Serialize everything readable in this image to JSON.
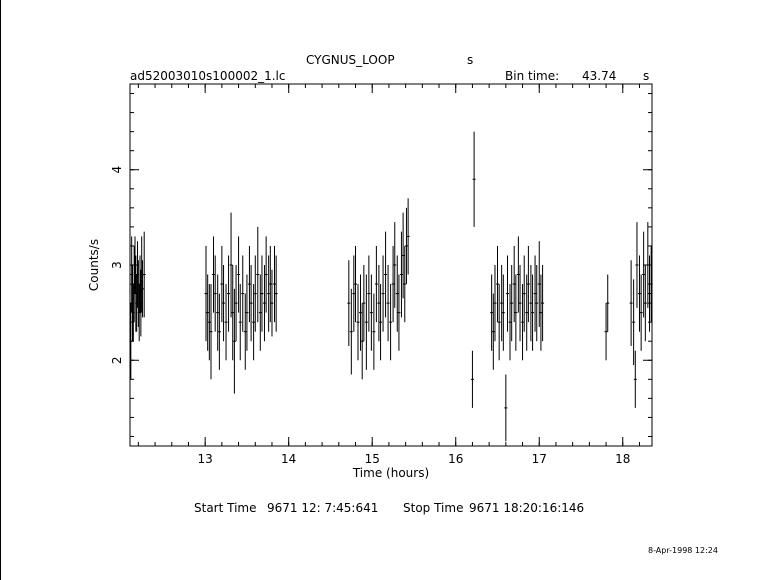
{
  "header": {
    "object": "CYGNUS_LOOP",
    "object_suffix": "s",
    "filename": "ad52003010s100002_1.lc",
    "bin_label": "Bin time:",
    "bin_value": "43.74",
    "bin_unit": "s"
  },
  "footer": {
    "start_label": "Start Time",
    "start_value": "9671 12: 7:45:641",
    "stop_label": "Stop Time",
    "stop_value": "9671 18:20:16:146",
    "date_stamp": "8-Apr-1998 12:24"
  },
  "chart_data": {
    "type": "scatter",
    "xlabel": "Time (hours)",
    "ylabel": "Counts/s",
    "xlim": [
      12.1,
      18.35
    ],
    "ylim": [
      1.1,
      4.9
    ],
    "xticks": [
      13,
      14,
      15,
      16,
      17,
      18
    ],
    "xtick_labels": [
      "13",
      "14",
      "15",
      "16",
      "17",
      "18"
    ],
    "yticks": [
      2,
      3,
      4
    ],
    "ytick_labels": [
      "2",
      "3",
      "4"
    ],
    "grid": false,
    "legend": "none",
    "series": [
      {
        "points": [
          [
            12.11,
            2.2,
            0.4
          ],
          [
            12.12,
            2.9,
            0.4
          ],
          [
            12.13,
            2.6,
            0.4
          ],
          [
            12.14,
            2.5,
            0.3
          ],
          [
            12.15,
            2.8,
            0.4
          ],
          [
            12.16,
            3.0,
            0.3
          ],
          [
            12.17,
            2.7,
            0.4
          ],
          [
            12.18,
            2.6,
            0.3
          ],
          [
            12.19,
            2.9,
            0.35
          ],
          [
            12.2,
            2.7,
            0.35
          ],
          [
            12.21,
            2.5,
            0.3
          ],
          [
            12.22,
            2.8,
            0.3
          ],
          [
            12.23,
            2.6,
            0.35
          ],
          [
            12.24,
            2.9,
            0.4
          ],
          [
            12.25,
            2.75,
            0.3
          ],
          [
            12.27,
            2.9,
            0.45
          ],
          [
            13.01,
            2.7,
            0.5
          ],
          [
            13.03,
            2.5,
            0.4
          ],
          [
            13.05,
            2.4,
            0.4
          ],
          [
            13.07,
            2.3,
            0.5
          ],
          [
            13.1,
            2.9,
            0.4
          ],
          [
            13.12,
            2.7,
            0.4
          ],
          [
            13.15,
            2.5,
            0.4
          ],
          [
            13.17,
            2.3,
            0.4
          ],
          [
            13.2,
            2.8,
            0.4
          ],
          [
            13.22,
            2.6,
            0.4
          ],
          [
            13.25,
            2.4,
            0.4
          ],
          [
            13.28,
            2.7,
            0.4
          ],
          [
            13.31,
            3.0,
            0.55
          ],
          [
            13.33,
            2.5,
            0.5
          ],
          [
            13.35,
            2.2,
            0.55
          ],
          [
            13.37,
            2.6,
            0.4
          ],
          [
            13.4,
            2.9,
            0.4
          ],
          [
            13.42,
            2.4,
            0.4
          ],
          [
            13.45,
            2.7,
            0.4
          ],
          [
            13.48,
            2.3,
            0.4
          ],
          [
            13.5,
            2.5,
            0.4
          ],
          [
            13.53,
            2.8,
            0.4
          ],
          [
            13.55,
            2.6,
            0.4
          ],
          [
            13.58,
            2.4,
            0.4
          ],
          [
            13.6,
            2.7,
            0.4
          ],
          [
            13.63,
            2.9,
            0.5
          ],
          [
            13.66,
            2.5,
            0.4
          ],
          [
            13.68,
            2.7,
            0.4
          ],
          [
            13.71,
            2.6,
            0.4
          ],
          [
            13.73,
            2.9,
            0.4
          ],
          [
            13.76,
            2.7,
            0.4
          ],
          [
            13.78,
            2.8,
            0.4
          ],
          [
            13.8,
            2.6,
            0.35
          ],
          [
            13.83,
            2.8,
            0.4
          ],
          [
            13.85,
            2.7,
            0.4
          ],
          [
            14.72,
            2.6,
            0.45
          ],
          [
            14.75,
            2.3,
            0.45
          ],
          [
            14.78,
            2.7,
            0.4
          ],
          [
            14.8,
            2.8,
            0.4
          ],
          [
            14.83,
            2.4,
            0.4
          ],
          [
            14.86,
            2.5,
            0.4
          ],
          [
            14.88,
            2.2,
            0.4
          ],
          [
            14.9,
            2.6,
            0.4
          ],
          [
            14.93,
            2.4,
            0.5
          ],
          [
            14.96,
            2.7,
            0.4
          ],
          [
            14.99,
            2.5,
            0.4
          ],
          [
            15.02,
            2.3,
            0.4
          ],
          [
            15.05,
            2.8,
            0.4
          ],
          [
            15.08,
            2.6,
            0.4
          ],
          [
            15.1,
            2.4,
            0.4
          ],
          [
            15.13,
            2.7,
            0.4
          ],
          [
            15.16,
            2.9,
            0.45
          ],
          [
            15.19,
            2.6,
            0.4
          ],
          [
            15.22,
            2.4,
            0.4
          ],
          [
            15.25,
            2.8,
            0.4
          ],
          [
            15.27,
            3.0,
            0.45
          ],
          [
            15.3,
            2.7,
            0.4
          ],
          [
            15.32,
            2.5,
            0.4
          ],
          [
            15.35,
            2.9,
            0.45
          ],
          [
            15.37,
            3.1,
            0.45
          ],
          [
            15.39,
            2.8,
            0.4
          ],
          [
            15.41,
            3.2,
            0.4
          ],
          [
            15.43,
            3.3,
            0.4
          ],
          [
            16.2,
            1.8,
            0.3
          ],
          [
            16.22,
            3.9,
            0.5
          ],
          [
            16.43,
            2.5,
            0.4
          ],
          [
            16.45,
            2.3,
            0.4
          ],
          [
            16.47,
            2.6,
            0.4
          ],
          [
            16.5,
            2.8,
            0.4
          ],
          [
            16.52,
            2.4,
            0.4
          ],
          [
            16.55,
            2.6,
            0.4
          ],
          [
            16.57,
            2.5,
            0.4
          ],
          [
            16.6,
            1.5,
            0.35
          ],
          [
            16.62,
            2.7,
            0.4
          ],
          [
            16.65,
            2.4,
            0.4
          ],
          [
            16.67,
            2.6,
            0.4
          ],
          [
            16.7,
            2.8,
            0.4
          ],
          [
            16.72,
            2.5,
            0.4
          ],
          [
            16.75,
            2.9,
            0.4
          ],
          [
            16.77,
            2.6,
            0.4
          ],
          [
            16.8,
            2.4,
            0.4
          ],
          [
            16.82,
            2.7,
            0.4
          ],
          [
            16.85,
            2.5,
            0.4
          ],
          [
            16.87,
            2.8,
            0.4
          ],
          [
            16.9,
            2.6,
            0.4
          ],
          [
            16.92,
            2.5,
            0.4
          ],
          [
            16.95,
            2.7,
            0.4
          ],
          [
            16.97,
            2.6,
            0.4
          ],
          [
            17.0,
            2.8,
            0.45
          ],
          [
            17.02,
            2.5,
            0.4
          ],
          [
            17.04,
            2.6,
            0.4
          ],
          [
            17.8,
            2.3,
            0.3
          ],
          [
            17.82,
            2.6,
            0.3
          ],
          [
            18.1,
            2.6,
            0.45
          ],
          [
            18.13,
            2.4,
            0.45
          ],
          [
            18.15,
            1.8,
            0.3
          ],
          [
            18.17,
            3.0,
            0.45
          ],
          [
            18.2,
            2.7,
            0.4
          ],
          [
            18.22,
            2.5,
            0.4
          ],
          [
            18.25,
            2.9,
            0.45
          ],
          [
            18.27,
            2.6,
            0.4
          ],
          [
            18.3,
            3.0,
            0.45
          ],
          [
            18.32,
            2.7,
            0.4
          ],
          [
            18.34,
            2.8,
            0.4
          ]
        ]
      }
    ]
  }
}
